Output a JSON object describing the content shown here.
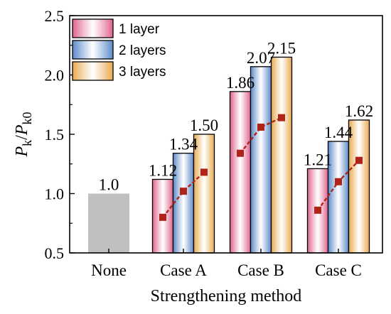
{
  "chart_data": {
    "type": "bar",
    "xlabel": "Strengthening method",
    "ylabel": {
      "main": "P",
      "sub1": "k",
      "slash": "/",
      "sub2": "k0"
    },
    "ylim": [
      0.5,
      2.5
    ],
    "yticks": [
      "0.5",
      "1.0",
      "1.5",
      "2.0",
      "2.5"
    ],
    "categories": [
      "None",
      "Case A",
      "Case B",
      "Case C"
    ],
    "baseline": {
      "category": "None",
      "value": 1.0,
      "label": "1.0",
      "color": "#c0c0c0"
    },
    "series": [
      {
        "name": "1 layer",
        "color": "#e0638f",
        "values": [
          null,
          1.12,
          1.86,
          1.21
        ],
        "labels": [
          null,
          "1.12",
          "1.86",
          "1.21"
        ]
      },
      {
        "name": "2 layers",
        "color": "#5b8ac9",
        "values": [
          null,
          1.34,
          2.07,
          1.44
        ],
        "labels": [
          null,
          "1.34",
          "2.07",
          "1.44"
        ]
      },
      {
        "name": "3 layers",
        "color": "#e8a94f",
        "values": [
          null,
          1.5,
          2.15,
          1.62
        ],
        "labels": [
          null,
          "1.50",
          "2.15",
          "1.62"
        ]
      }
    ],
    "trend_lines": [
      {
        "category": "Case A",
        "y": [
          0.8,
          1.02,
          1.18
        ]
      },
      {
        "category": "Case B",
        "y": [
          1.34,
          1.56,
          1.64
        ]
      },
      {
        "category": "Case C",
        "y": [
          0.86,
          1.1,
          1.28
        ]
      }
    ],
    "trend_color": "#b02318",
    "legend_position": "top-left",
    "grid": false
  }
}
